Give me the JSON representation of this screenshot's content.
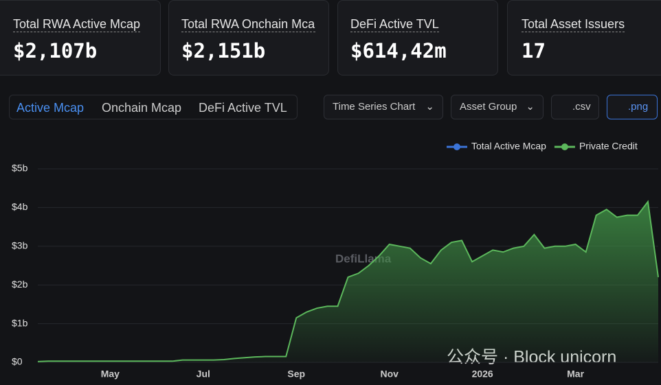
{
  "stats": [
    {
      "label": "Total RWA Active Mcap",
      "value": "$2,107b"
    },
    {
      "label": "Total RWA Onchain Mcap",
      "value": "$2,151b"
    },
    {
      "label": "DeFi Active TVL",
      "value": "$614,42m"
    },
    {
      "label": "Total Asset Issuers",
      "value": "17"
    }
  ],
  "tabs": [
    "Active Mcap",
    "Onchain Mcap",
    "DeFi Active TVL"
  ],
  "buttons": [
    "Time Series Chart",
    "Asset Group",
    ".csv",
    ".png"
  ],
  "watermarks": [
    "DefiLlama",
    "公众号 · Block unicorn"
  ],
  "chart_data": {
    "type": "area",
    "categories": [
      null,
      null,
      null,
      null,
      null,
      null,
      null,
      "May",
      null,
      null,
      null,
      null,
      null,
      null,
      null,
      null,
      "Jul",
      null,
      null,
      null,
      null,
      null,
      null,
      null,
      null,
      "Sep",
      null,
      null,
      null,
      null,
      null,
      null,
      null,
      null,
      "Nov",
      null,
      null,
      null,
      null,
      null,
      null,
      null,
      null,
      "2026",
      null,
      null,
      null,
      null,
      null,
      null,
      null,
      null,
      "Mar",
      null,
      null,
      null,
      null,
      null,
      null,
      null,
      null
    ],
    "series": [
      {
        "name": "Total Active Mcap",
        "color": "#3b74d8",
        "values": [
          null,
          null,
          null,
          null,
          null,
          null,
          null,
          null,
          null,
          null,
          null,
          null,
          null,
          null,
          null,
          null,
          null,
          null,
          null,
          null,
          null,
          null,
          null,
          null,
          null,
          null,
          null,
          null,
          null,
          null,
          null,
          null,
          null,
          null,
          null,
          null,
          null,
          null,
          null,
          null,
          null,
          null,
          null,
          null,
          null,
          null,
          null,
          null,
          null,
          null,
          null,
          null,
          null,
          null,
          null,
          null,
          null,
          null,
          null,
          null,
          null
        ]
      },
      {
        "name": "Private Credit",
        "color": "#5cb85c",
        "values": [
          0.02,
          0.03,
          0.03,
          0.03,
          0.03,
          0.03,
          0.03,
          0.03,
          0.03,
          0.03,
          0.03,
          0.03,
          0.03,
          0.03,
          0.06,
          0.06,
          0.06,
          0.06,
          0.07,
          0.1,
          0.12,
          0.14,
          0.15,
          0.15,
          0.15,
          1.15,
          1.3,
          1.4,
          1.45,
          1.45,
          2.2,
          2.3,
          2.5,
          2.75,
          3.05,
          3.0,
          2.95,
          2.7,
          2.55,
          2.9,
          3.1,
          3.15,
          2.6,
          2.75,
          2.9,
          2.85,
          2.95,
          3.0,
          3.3,
          2.95,
          3.0,
          3.0,
          3.05,
          2.85,
          3.8,
          3.95,
          3.75,
          3.8,
          3.8,
          4.15,
          2.2
        ]
      }
    ],
    "ylim": [
      0,
      5
    ],
    "yticks": [
      {
        "value": 0,
        "label": "$0"
      },
      {
        "value": 1,
        "label": "$1b"
      },
      {
        "value": 2,
        "label": "$2b"
      },
      {
        "value": 3,
        "label": "$3b"
      },
      {
        "value": 4,
        "label": "$4b"
      },
      {
        "value": 5,
        "label": "$5b"
      }
    ],
    "grid": true
  }
}
